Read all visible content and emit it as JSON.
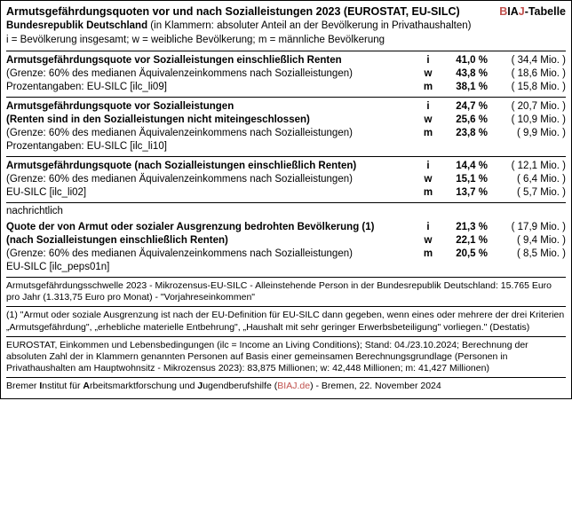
{
  "header": {
    "title": "Armutsgefährdungsquoten vor und nach Sozialleistungen 2023 (EUROSTAT, EU-SILC)",
    "biaj_b": "B",
    "biaj_ia": "IA",
    "biaj_j": "J",
    "biaj_suffix": "-Tabelle",
    "sub_bold": "Bundesrepublik Deutschland",
    "sub_rest": " (in Klammern: absoluter Anteil an der Bevölkerung in Privathaushalten)",
    "legend": "i = Bevölkerung insgesamt; w = weibliche Bevölkerung; m = männliche Bevölkerung"
  },
  "blocks": [
    {
      "rows": [
        {
          "desc": "Armutsgefährdungsquote vor Sozialleistungen einschließlich Renten",
          "bold": true,
          "letter": "i",
          "pct": "41,0 %",
          "abs": "(  34,4 Mio. )"
        },
        {
          "desc": "(Grenze: 60% des medianen Äquivalenzeinkommens nach Sozialleistungen)",
          "bold": false,
          "letter": "w",
          "pct": "43,8 %",
          "abs": "(  18,6 Mio. )"
        },
        {
          "desc": "Prozentangaben: EU-SILC  [ilc_li09]",
          "bold": false,
          "letter": "m",
          "pct": "38,1 %",
          "abs": "(  15,8 Mio. )"
        }
      ]
    },
    {
      "rows": [
        {
          "desc": "Armutsgefährdungsquote vor Sozialleistungen",
          "bold": true,
          "letter": "i",
          "pct": "24,7 %",
          "abs": "(  20,7 Mio. )"
        },
        {
          "desc": "(Renten sind in den Sozialleistungen nicht miteingeschlossen)",
          "bold": true,
          "letter": "w",
          "pct": "25,6 %",
          "abs": "(  10,9 Mio. )"
        },
        {
          "desc": "(Grenze: 60% des medianen Äquivalenzeinkommens nach Sozialleistungen)",
          "bold": false,
          "letter": "m",
          "pct": "23,8 %",
          "abs": "(    9,9 Mio. )"
        },
        {
          "desc": "Prozentangaben: EU-SILC  [ilc_li10]",
          "bold": false,
          "letter": "",
          "pct": "",
          "abs": ""
        }
      ]
    },
    {
      "rows": [
        {
          "desc": "Armutsgefährdungsquote (nach Sozialleistungen einschließlich Renten)",
          "bold": true,
          "letter": "i",
          "pct": "14,4 %",
          "abs": "(  12,1 Mio. )"
        },
        {
          "desc": "(Grenze: 60% des medianen Äquivalenzeinkommens nach Sozialleistungen)",
          "bold": false,
          "letter": "w",
          "pct": "15,1 %",
          "abs": "(    6,4 Mio. )"
        },
        {
          "desc": "EU-SILC  [ilc_li02]",
          "bold": false,
          "letter": "m",
          "pct": "13,7 %",
          "abs": "(    5,7 Mio. )"
        }
      ]
    }
  ],
  "nachrichtlich_label": "nachrichtlich",
  "block4": {
    "rows": [
      {
        "desc": "Quote der von Armut oder sozialer Ausgrenzung bedrohten Bevölkerung (1)",
        "bold": true,
        "letter": "i",
        "pct": "21,3 %",
        "abs": "(  17,9 Mio. )"
      },
      {
        "desc": "(nach Sozialleistungen einschließlich Renten)",
        "bold": true,
        "letter": "w",
        "pct": "22,1 %",
        "abs": "(    9,4 Mio. )"
      },
      {
        "desc": "(Grenze: 60% des medianen Äquivalenzeinkommens nach Sozialleistungen)",
        "bold": false,
        "letter": "m",
        "pct": "20,5 %",
        "abs": "(    8,5 Mio. )"
      },
      {
        "desc": "EU-SILC  [ilc_peps01n]",
        "bold": false,
        "letter": "",
        "pct": "",
        "abs": ""
      }
    ]
  },
  "note1": "Armutsgefährdungsschwelle 2023 - Mikrozensus-EU-SILC - Alleinstehende Person in der Bundesrepublik Deutschland: 15.765 Euro pro Jahr (1.313,75 Euro pro Monat) - \"Vorjahreseinkommen\"",
  "note2": "(1) \"Armut oder soziale Ausgrenzung ist nach der EU-Definition für EU-SILC dann gegeben, wenn eines oder mehrere der drei Kriterien „Armutsgefährdung\", „erhebliche materielle Entbehrung\", „Haushalt mit sehr geringer Erwerbsbeteiligung\" vorliegen.\" (Destatis)",
  "note3": "EUROSTAT, Einkommen und Lebensbedingungen (ilc = Income an Living Conditions); Stand: 04./23.10.2024; Berechnung der absoluten Zahl der in Klammern genannten Personen auf Basis einer gemeinsamen Berechnungsgrundlage (Personen in Privathaushalten am Hauptwohnsitz - Mikrozensus 2023): 83,875 Millionen; w: 42,448 Millionen; m: 41,427 Millionen)",
  "footer": {
    "p1": "Bremer ",
    "p2": "I",
    "p3": "nstitut für ",
    "p4": "A",
    "p5": "rbeitsmarktforschung und ",
    "p6": "J",
    "p7": "ugendberufshilfe (",
    "p8": "BIAJ.de",
    "p9": ") - Bremen, 22. November 2024"
  }
}
